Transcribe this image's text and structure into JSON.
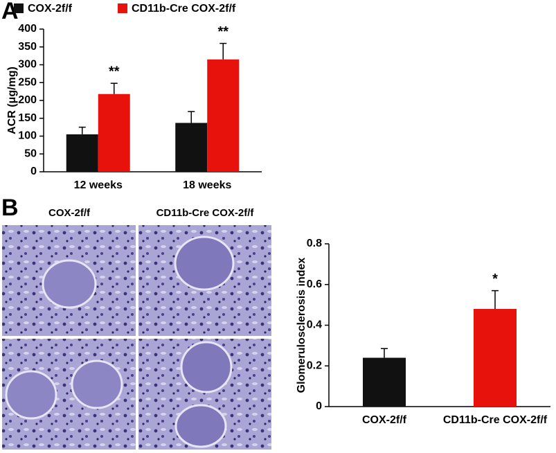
{
  "panel_labels": [
    "A",
    "B"
  ],
  "image_labels": [
    "COX-2f/f",
    "CD11b-Cre COX-2f/f"
  ],
  "chart_data": [
    {
      "type": "bar",
      "y_label": "ACR (μg/mg)",
      "categories": [
        "12 weeks",
        "18 weeks"
      ],
      "series": [
        {
          "name": "COX-2f/f",
          "color": "#111111",
          "values": [
            105,
            137
          ],
          "errors": [
            20,
            32
          ]
        },
        {
          "name": "CD11b-Cre COX-2f/f",
          "color": "#e8120c",
          "values": [
            218,
            315
          ],
          "errors": [
            30,
            45
          ],
          "annotations": [
            {
              "index": 0,
              "text": "**"
            },
            {
              "index": 1,
              "text": "**"
            }
          ]
        }
      ],
      "ylim": [
        0,
        400
      ],
      "yticks": [
        0,
        50,
        100,
        150,
        200,
        250,
        300,
        350,
        400
      ],
      "legend": "top"
    },
    {
      "type": "bar",
      "y_label": "Glomerulosclerosis index",
      "categories": [
        "COX-2f/f",
        "CD11b-Cre COX-2f/f"
      ],
      "values": [
        0.24,
        0.48
      ],
      "errors": [
        0.045,
        0.09
      ],
      "colors": [
        "#111111",
        "#e8120c"
      ],
      "annotations": [
        {
          "index": 1,
          "text": "*"
        }
      ],
      "ylim": [
        0,
        0.8
      ],
      "yticks": [
        0,
        0.2,
        0.4,
        0.6,
        0.8
      ]
    }
  ]
}
